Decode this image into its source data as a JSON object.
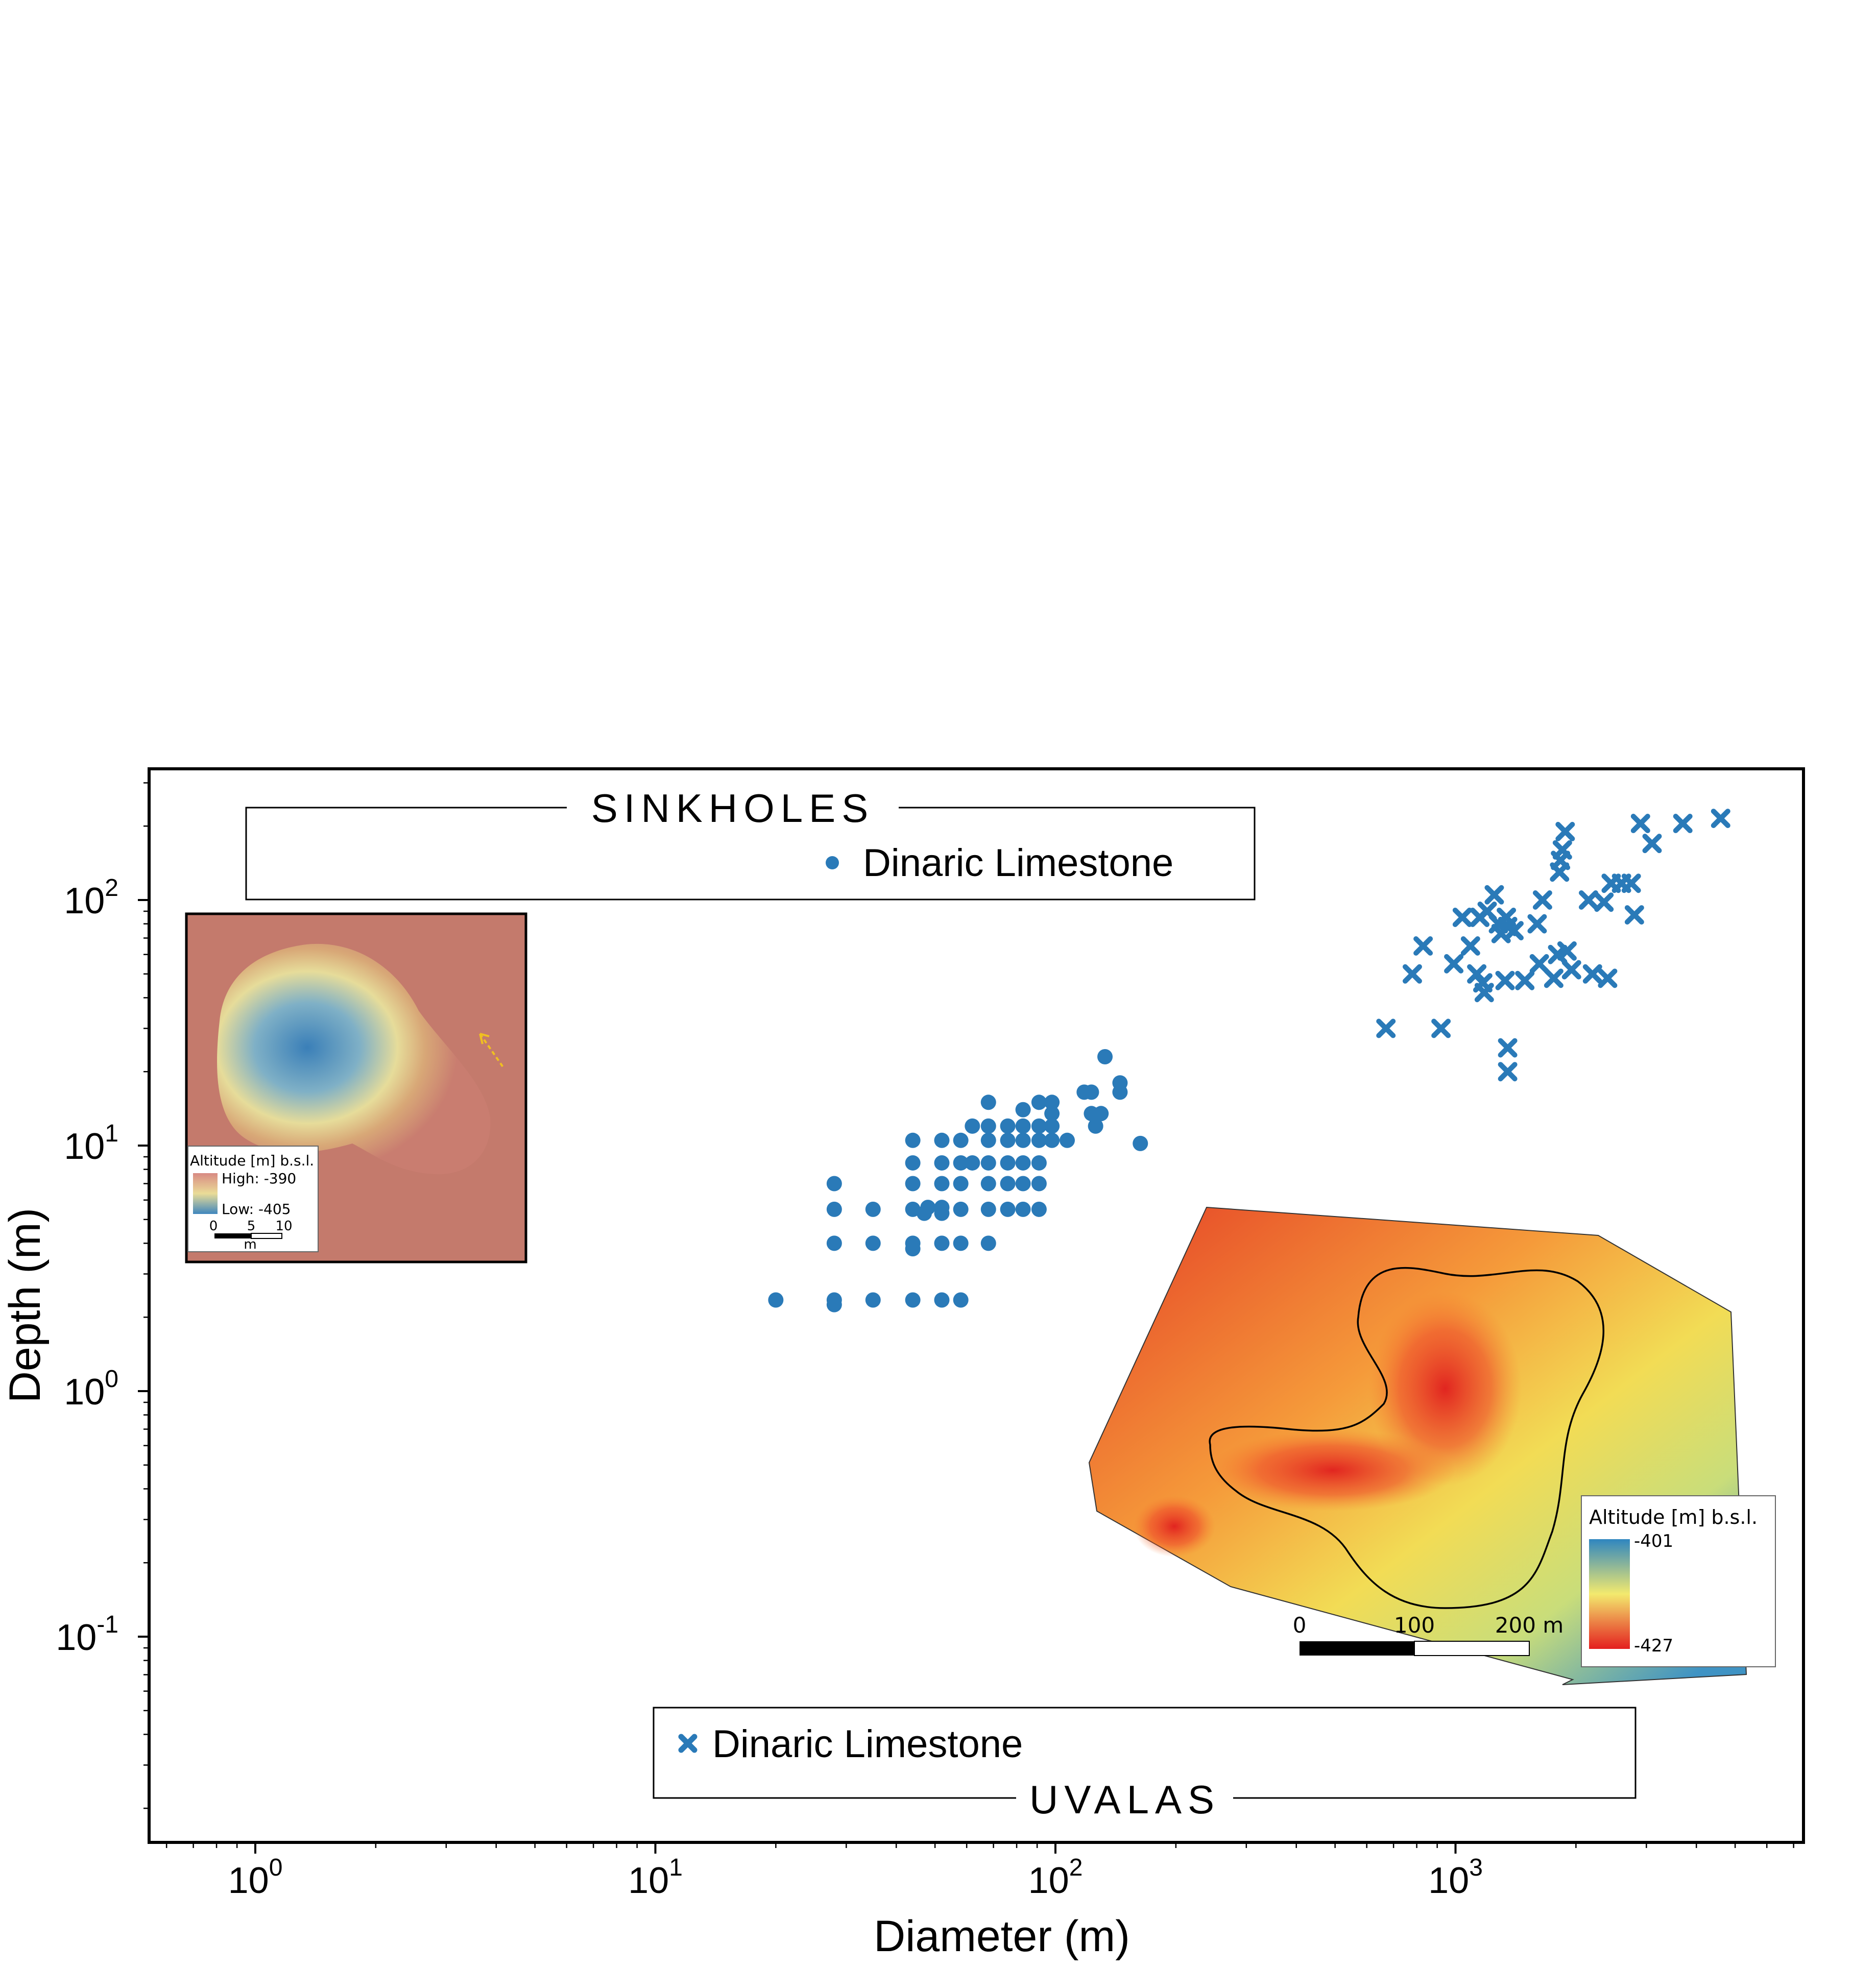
{
  "chart_data": {
    "type": "scatter",
    "title": "",
    "xlabel": "Diameter (m)",
    "ylabel": "Depth (m)",
    "xscale": "log",
    "yscale": "log",
    "xlim": [
      0.55,
      7000
    ],
    "ylim": [
      0.016,
      320
    ],
    "grid": false,
    "x_ticks": [
      {
        "base": "10",
        "exp": "0",
        "value": 1
      },
      {
        "base": "10",
        "exp": "1",
        "value": 10
      },
      {
        "base": "10",
        "exp": "2",
        "value": 100
      },
      {
        "base": "10",
        "exp": "3",
        "value": 1000
      }
    ],
    "y_ticks": [
      {
        "base": "10",
        "exp": "-1",
        "value": 0.1
      },
      {
        "base": "10",
        "exp": "0",
        "value": 1
      },
      {
        "base": "10",
        "exp": "1",
        "value": 10
      },
      {
        "base": "10",
        "exp": "2",
        "value": 100
      }
    ],
    "color": "#2a7ab8",
    "series": [
      {
        "name": "Dinaric Limestone",
        "group": "SINKHOLES",
        "marker": "circle",
        "points": [
          {
            "x": 20,
            "y": 2.35
          },
          {
            "x": 28,
            "y": 2.35
          },
          {
            "x": 28,
            "y": 2.25
          },
          {
            "x": 28,
            "y": 4
          },
          {
            "x": 28,
            "y": 5.5
          },
          {
            "x": 28,
            "y": 7
          },
          {
            "x": 35,
            "y": 2.35
          },
          {
            "x": 35,
            "y": 4
          },
          {
            "x": 35,
            "y": 5.5
          },
          {
            "x": 44,
            "y": 2.35
          },
          {
            "x": 44,
            "y": 4
          },
          {
            "x": 44,
            "y": 3.8
          },
          {
            "x": 44,
            "y": 5.5
          },
          {
            "x": 44,
            "y": 7
          },
          {
            "x": 44,
            "y": 8.5
          },
          {
            "x": 44,
            "y": 10.5
          },
          {
            "x": 47,
            "y": 5.3
          },
          {
            "x": 48,
            "y": 5.6
          },
          {
            "x": 52,
            "y": 2.35
          },
          {
            "x": 52,
            "y": 4
          },
          {
            "x": 52,
            "y": 5.3
          },
          {
            "x": 52,
            "y": 5.6
          },
          {
            "x": 52,
            "y": 7
          },
          {
            "x": 52,
            "y": 8.5
          },
          {
            "x": 52,
            "y": 10.5
          },
          {
            "x": 58,
            "y": 2.35
          },
          {
            "x": 58,
            "y": 4
          },
          {
            "x": 58,
            "y": 5.5
          },
          {
            "x": 58,
            "y": 7
          },
          {
            "x": 58,
            "y": 8.5
          },
          {
            "x": 58,
            "y": 10.5
          },
          {
            "x": 62,
            "y": 8.5
          },
          {
            "x": 62,
            "y": 12
          },
          {
            "x": 68,
            "y": 4
          },
          {
            "x": 68,
            "y": 5.5
          },
          {
            "x": 68,
            "y": 7
          },
          {
            "x": 68,
            "y": 8.5
          },
          {
            "x": 68,
            "y": 10.5
          },
          {
            "x": 68,
            "y": 12
          },
          {
            "x": 68,
            "y": 15
          },
          {
            "x": 76,
            "y": 5.5
          },
          {
            "x": 76,
            "y": 7
          },
          {
            "x": 76,
            "y": 8.5
          },
          {
            "x": 76,
            "y": 10.5
          },
          {
            "x": 76,
            "y": 12
          },
          {
            "x": 83,
            "y": 5.5
          },
          {
            "x": 83,
            "y": 7
          },
          {
            "x": 83,
            "y": 8.5
          },
          {
            "x": 83,
            "y": 10.5
          },
          {
            "x": 83,
            "y": 12
          },
          {
            "x": 83,
            "y": 14
          },
          {
            "x": 91,
            "y": 5.5
          },
          {
            "x": 91,
            "y": 7
          },
          {
            "x": 91,
            "y": 8.5
          },
          {
            "x": 91,
            "y": 10.5
          },
          {
            "x": 91,
            "y": 12
          },
          {
            "x": 91,
            "y": 15
          },
          {
            "x": 98,
            "y": 10.5
          },
          {
            "x": 98,
            "y": 12
          },
          {
            "x": 98,
            "y": 13.5
          },
          {
            "x": 98,
            "y": 15
          },
          {
            "x": 107,
            "y": 10.5
          },
          {
            "x": 118,
            "y": 16.5
          },
          {
            "x": 123,
            "y": 13.5
          },
          {
            "x": 123,
            "y": 16.5
          },
          {
            "x": 126,
            "y": 12
          },
          {
            "x": 130,
            "y": 13.5
          },
          {
            "x": 133,
            "y": 23
          },
          {
            "x": 145,
            "y": 18
          },
          {
            "x": 145,
            "y": 16.5
          },
          {
            "x": 163,
            "y": 10.2
          }
        ]
      },
      {
        "name": "Dinaric Limestone",
        "group": "UVALAS",
        "marker": "x",
        "points": [
          {
            "x": 670,
            "y": 30
          },
          {
            "x": 780,
            "y": 50
          },
          {
            "x": 830,
            "y": 65
          },
          {
            "x": 920,
            "y": 30
          },
          {
            "x": 990,
            "y": 55
          },
          {
            "x": 1040,
            "y": 85
          },
          {
            "x": 1090,
            "y": 65
          },
          {
            "x": 1130,
            "y": 50
          },
          {
            "x": 1150,
            "y": 85
          },
          {
            "x": 1170,
            "y": 46
          },
          {
            "x": 1180,
            "y": 42
          },
          {
            "x": 1200,
            "y": 90
          },
          {
            "x": 1250,
            "y": 105
          },
          {
            "x": 1280,
            "y": 80
          },
          {
            "x": 1300,
            "y": 73
          },
          {
            "x": 1330,
            "y": 47
          },
          {
            "x": 1340,
            "y": 85
          },
          {
            "x": 1350,
            "y": 78
          },
          {
            "x": 1350,
            "y": 25
          },
          {
            "x": 1350,
            "y": 20
          },
          {
            "x": 1400,
            "y": 75
          },
          {
            "x": 1490,
            "y": 47
          },
          {
            "x": 1600,
            "y": 80
          },
          {
            "x": 1620,
            "y": 55
          },
          {
            "x": 1650,
            "y": 100
          },
          {
            "x": 1760,
            "y": 48
          },
          {
            "x": 1800,
            "y": 60
          },
          {
            "x": 1820,
            "y": 130
          },
          {
            "x": 1830,
            "y": 145
          },
          {
            "x": 1850,
            "y": 160
          },
          {
            "x": 1880,
            "y": 190
          },
          {
            "x": 1900,
            "y": 62
          },
          {
            "x": 1950,
            "y": 52
          },
          {
            "x": 2150,
            "y": 100
          },
          {
            "x": 2200,
            "y": 50
          },
          {
            "x": 2350,
            "y": 98
          },
          {
            "x": 2400,
            "y": 48
          },
          {
            "x": 2450,
            "y": 117
          },
          {
            "x": 2600,
            "y": 117
          },
          {
            "x": 2750,
            "y": 117
          },
          {
            "x": 2800,
            "y": 87
          },
          {
            "x": 2900,
            "y": 205
          },
          {
            "x": 3100,
            "y": 170
          },
          {
            "x": 3700,
            "y": 205
          },
          {
            "x": 4600,
            "y": 215
          }
        ]
      }
    ],
    "legend_sinkholes": {
      "title": "SINKHOLES",
      "entry": "Dinaric Limestone"
    },
    "legend_uvalas": {
      "title": "UVALAS",
      "entry": "Dinaric Limestone"
    }
  },
  "inset_small": {
    "legend_title": "Altitude [m] b.s.l.",
    "high_label": "High: -390",
    "low_label": "Low: -405",
    "scale_ticks": [
      "0",
      "5",
      "10"
    ],
    "scale_unit": "m",
    "colors": {
      "high": "#d88a83",
      "mid": "#eadc97",
      "low": "#3f86bd"
    }
  },
  "inset_large": {
    "legend_title": "Altitude [m] b.s.l.",
    "high_label": "-401",
    "low_label": "-427",
    "scale_ticks": [
      "0",
      "100",
      "200 m"
    ],
    "colors": {
      "top": "#2f86c0",
      "mid": "#f3ea6e",
      "bottom": "#e41f1f"
    }
  }
}
